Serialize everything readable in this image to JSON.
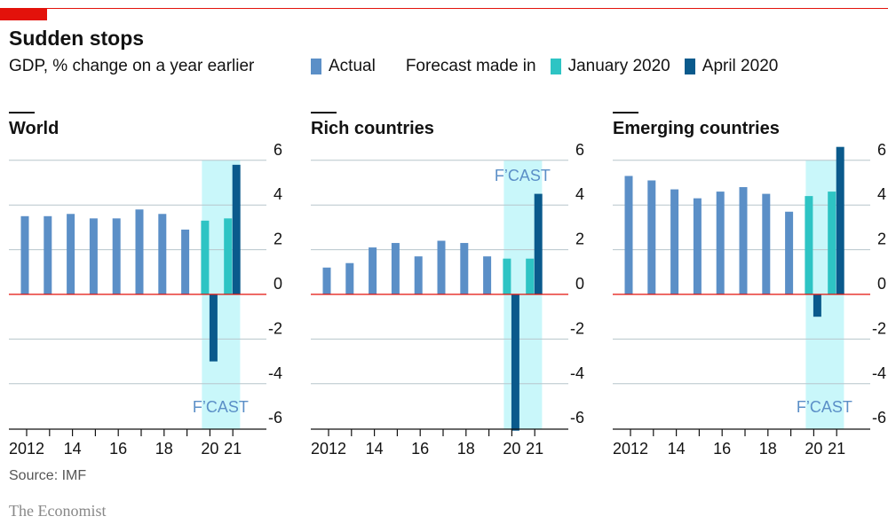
{
  "header": {
    "title": "Sudden stops",
    "subtitle": "GDP, % change on a year earlier"
  },
  "legend": {
    "actual": "Actual",
    "forecast_label": "Forecast made in",
    "jan": "January 2020",
    "apr": "April 2020"
  },
  "colors": {
    "actual": "#5b8fc7",
    "jan": "#2ec4c4",
    "apr": "#0a5a8c",
    "shade": "#c9f7fa",
    "zero": "#e3120b",
    "grid": "#b7c6cc"
  },
  "forecast_shade_label": "F’CAST",
  "footer": {
    "source": "Source: IMF",
    "brand": "The Economist"
  },
  "chart_data": [
    {
      "type": "bar",
      "title": "World",
      "ylim": [
        -6,
        6
      ],
      "yticks": [
        "6",
        "4",
        "2",
        "0",
        "-2",
        "-4",
        "-6"
      ],
      "xticklabels": [
        "2012",
        "14",
        "16",
        "18",
        "20",
        "21"
      ],
      "actual": {
        "years": [
          2012,
          2013,
          2014,
          2015,
          2016,
          2017,
          2018,
          2019
        ],
        "values": [
          3.5,
          3.5,
          3.6,
          3.4,
          3.4,
          3.8,
          3.6,
          2.9
        ]
      },
      "jan2020": {
        "years": [
          2020,
          2021
        ],
        "values": [
          3.3,
          3.4
        ]
      },
      "apr2020": {
        "years": [
          2020,
          2021
        ],
        "values": [
          -3.0,
          5.8
        ]
      }
    },
    {
      "type": "bar",
      "title": "Rich countries",
      "ylim": [
        -6,
        6
      ],
      "yticks": [
        "6",
        "4",
        "2",
        "0",
        "-2",
        "-4",
        "-6"
      ],
      "xticklabels": [
        "2012",
        "14",
        "16",
        "18",
        "20",
        "21"
      ],
      "actual": {
        "years": [
          2012,
          2013,
          2014,
          2015,
          2016,
          2017,
          2018,
          2019
        ],
        "values": [
          1.2,
          1.4,
          2.1,
          2.3,
          1.7,
          2.4,
          2.3,
          1.7
        ]
      },
      "jan2020": {
        "years": [
          2020,
          2021
        ],
        "values": [
          1.6,
          1.6
        ]
      },
      "apr2020": {
        "years": [
          2020,
          2021
        ],
        "values": [
          -6.1,
          4.5
        ]
      }
    },
    {
      "type": "bar",
      "title": "Emerging countries",
      "ylim": [
        -6,
        6
      ],
      "yticks": [
        "6",
        "4",
        "2",
        "0",
        "-2",
        "-4",
        "-6"
      ],
      "xticklabels": [
        "2012",
        "14",
        "16",
        "18",
        "20",
        "21"
      ],
      "actual": {
        "years": [
          2012,
          2013,
          2014,
          2015,
          2016,
          2017,
          2018,
          2019
        ],
        "values": [
          5.3,
          5.1,
          4.7,
          4.3,
          4.6,
          4.8,
          4.5,
          3.7
        ]
      },
      "jan2020": {
        "years": [
          2020,
          2021
        ],
        "values": [
          4.4,
          4.6
        ]
      },
      "apr2020": {
        "years": [
          2020,
          2021
        ],
        "values": [
          -1.0,
          6.6
        ]
      }
    }
  ]
}
